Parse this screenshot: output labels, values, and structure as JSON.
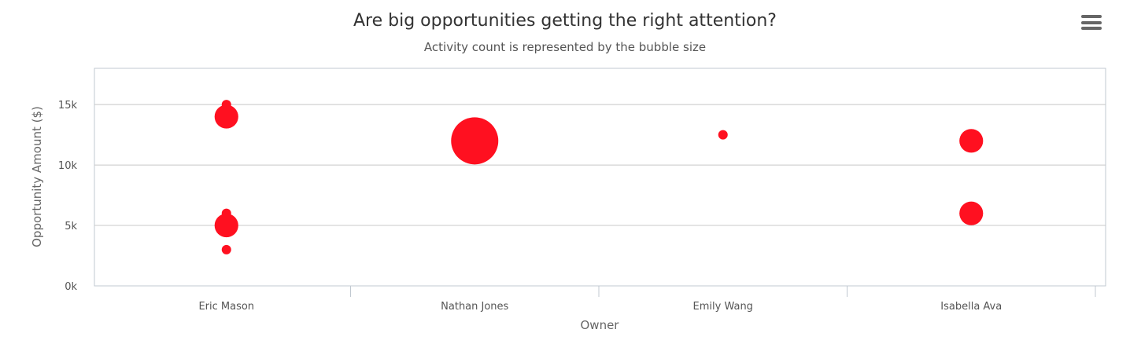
{
  "chart_data": {
    "type": "bubble",
    "title": "Are big opportunities getting the right attention?",
    "subtitle": "Activity count is represented by the bubble size",
    "xlabel": "Owner",
    "ylabel": "Opportunity Amount ($)",
    "categories": [
      "Eric Mason",
      "Nathan Jones",
      "Emily Wang",
      "Isabella Ava"
    ],
    "ylim": [
      0,
      18000
    ],
    "yticks": [
      0,
      5000,
      10000,
      15000
    ],
    "ytick_labels": [
      "0k",
      "5k",
      "10k",
      "15k"
    ],
    "grid": true,
    "color": "#ff1020",
    "points": [
      {
        "owner": "Eric Mason",
        "y": 15000,
        "z": 1
      },
      {
        "owner": "Eric Mason",
        "y": 14000,
        "z": 3
      },
      {
        "owner": "Eric Mason",
        "y": 6000,
        "z": 1
      },
      {
        "owner": "Eric Mason",
        "y": 5000,
        "z": 3
      },
      {
        "owner": "Eric Mason",
        "y": 3000,
        "z": 1
      },
      {
        "owner": "Nathan Jones",
        "y": 12000,
        "z": 15
      },
      {
        "owner": "Emily Wang",
        "y": 12500,
        "z": 1
      },
      {
        "owner": "Isabella Ava",
        "y": 12000,
        "z": 3
      },
      {
        "owner": "Isabella Ava",
        "y": 6000,
        "z": 3
      }
    ]
  },
  "menu": {
    "icon": "hamburger-menu-icon"
  }
}
